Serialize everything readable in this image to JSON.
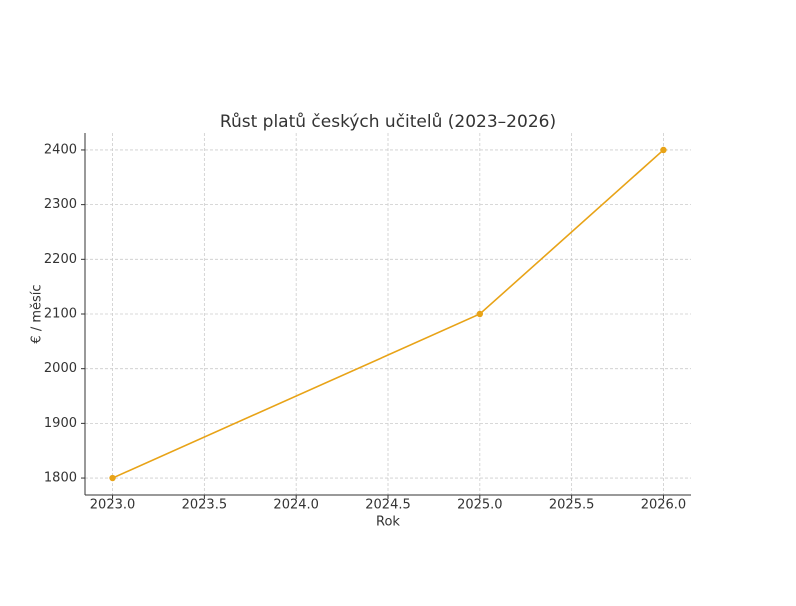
{
  "chart_data": {
    "type": "line",
    "title": "Růst platů českých učitelů (2023–2026)",
    "xlabel": "Rok",
    "ylabel": "€ / měsíc",
    "x": [
      2023,
      2025,
      2026
    ],
    "values": [
      1800,
      2100,
      2400
    ],
    "color": "#e8a317",
    "xlim": [
      2022.85,
      2026.15
    ],
    "xticks": [
      {
        "value": 2023,
        "label": "2023.0"
      },
      {
        "value": 2023.5,
        "label": "2023.5"
      },
      {
        "value": 2024,
        "label": "2024.0"
      },
      {
        "value": 2024.5,
        "label": "2024.5"
      },
      {
        "value": 2025,
        "label": "2025.0"
      },
      {
        "value": 2025.5,
        "label": "2025.5"
      },
      {
        "value": 2026,
        "label": "2026.0"
      }
    ],
    "ylim": [
      1769,
      2431
    ],
    "yticks": [
      1800,
      1900,
      2000,
      2100,
      2200,
      2300,
      2400
    ],
    "grid": true
  }
}
